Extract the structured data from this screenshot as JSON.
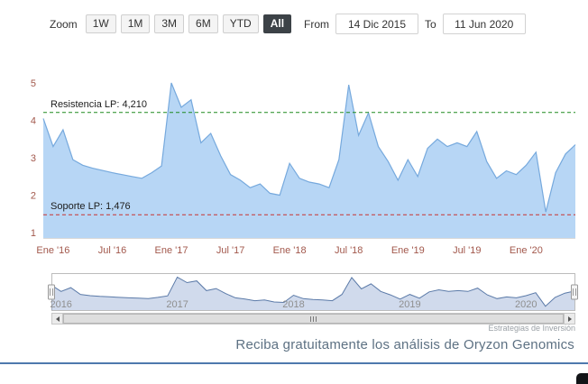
{
  "toolbar": {
    "zoom_label": "Zoom",
    "buttons": [
      {
        "label": "1W",
        "selected": false
      },
      {
        "label": "1M",
        "selected": false
      },
      {
        "label": "3M",
        "selected": false
      },
      {
        "label": "6M",
        "selected": false
      },
      {
        "label": "YTD",
        "selected": false
      },
      {
        "label": "All",
        "selected": true
      }
    ],
    "from_label": "From",
    "from_value": "14 Dic 2015",
    "to_label": "To",
    "to_value": "11 Jun 2020"
  },
  "chart_data": {
    "type": "area",
    "series": [
      {
        "name": "Oryzon Genomics",
        "x": [
          "2015-12",
          "2016-01",
          "2016-02",
          "2016-03",
          "2016-04",
          "2016-05",
          "2016-06",
          "2016-07",
          "2016-08",
          "2016-09",
          "2016-10",
          "2016-11",
          "2016-12",
          "2017-01",
          "2017-02",
          "2017-03",
          "2017-04",
          "2017-05",
          "2017-06",
          "2017-07",
          "2017-08",
          "2017-09",
          "2017-10",
          "2017-11",
          "2017-12",
          "2018-01",
          "2018-02",
          "2018-03",
          "2018-04",
          "2018-05",
          "2018-06",
          "2018-07",
          "2018-08",
          "2018-09",
          "2018-10",
          "2018-11",
          "2018-12",
          "2019-01",
          "2019-02",
          "2019-03",
          "2019-04",
          "2019-05",
          "2019-06",
          "2019-07",
          "2019-08",
          "2019-09",
          "2019-10",
          "2019-11",
          "2019-12",
          "2020-01",
          "2020-02",
          "2020-03",
          "2020-04",
          "2020-05",
          "2020-06"
        ],
        "values": [
          4.05,
          3.3,
          3.75,
          2.95,
          2.8,
          2.72,
          2.66,
          2.6,
          2.55,
          2.5,
          2.45,
          2.6,
          2.78,
          5.0,
          4.35,
          4.55,
          3.4,
          3.65,
          3.05,
          2.55,
          2.4,
          2.2,
          2.3,
          2.05,
          2.0,
          2.85,
          2.45,
          2.35,
          2.3,
          2.2,
          2.95,
          4.95,
          3.6,
          4.2,
          3.3,
          2.9,
          2.4,
          2.95,
          2.5,
          3.25,
          3.5,
          3.3,
          3.4,
          3.3,
          3.7,
          2.9,
          2.45,
          2.65,
          2.55,
          2.8,
          3.15,
          1.55,
          2.6,
          3.1,
          3.35
        ]
      }
    ],
    "x_tick_labels": [
      "Ene '16",
      "Jul '16",
      "Ene '17",
      "Jul '17",
      "Ene '18",
      "Jul '18",
      "Ene '19",
      "Jul '19",
      "Ene '20"
    ],
    "x_tick_positions": [
      1,
      7,
      13,
      19,
      25,
      31,
      37,
      43,
      49
    ],
    "y_ticks": [
      1,
      2,
      3,
      4,
      5
    ],
    "ylim": [
      0.85,
      5.35
    ],
    "plot_lines": [
      {
        "name": "resistance",
        "label": "Resistencia LP: 4,210",
        "value": 4.21,
        "color": "#1f8a1f",
        "style": "dashed"
      },
      {
        "name": "support",
        "label": "Soporte LP: 1,476",
        "value": 1.476,
        "color": "#c83232",
        "style": "dashed"
      }
    ],
    "navigator": {
      "year_labels": [
        "2016",
        "2017",
        "2018",
        "2019",
        "2020"
      ],
      "year_positions": [
        1,
        13,
        25,
        37,
        49
      ]
    }
  },
  "colors": {
    "series_line": "#76a9dd",
    "series_fill": "rgba(124,181,236,0.55)",
    "nav_line": "#5b7aa8",
    "nav_fill": "rgba(120,150,200,0.35)",
    "resistance_line": "#1f8a1f",
    "support_line": "#c83232",
    "axis_label": "#a2584c",
    "selected_button_bg": "#3c4247",
    "divider": "#4e79ad",
    "footer_text": "#5d7183"
  },
  "watermark": "Estrategias de Inversión",
  "footer": {
    "message": "Reciba gratuitamente los análisis de Oryzon Genomics"
  }
}
